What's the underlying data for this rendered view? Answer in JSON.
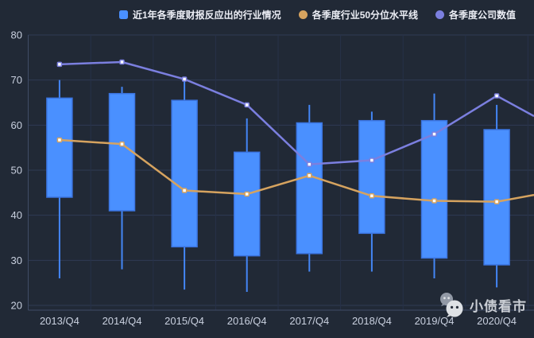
{
  "legend": {
    "items": [
      {
        "label": "近1年各季度财报反应出的行业情况",
        "marker": "square",
        "color": "#4a90ff"
      },
      {
        "label": "各季度行业50分位水平线",
        "marker": "circle",
        "color": "#d6a35f"
      },
      {
        "label": "各季度公司数值",
        "marker": "circle",
        "color": "#7b7fdf"
      }
    ]
  },
  "watermark": {
    "icon": "wechat-chat-bubbles-icon",
    "text": "小债看市"
  },
  "chart_data": {
    "type": "candlestick",
    "categories": [
      "2013/Q4",
      "2014/Q4",
      "2015/Q4",
      "2016/Q4",
      "2017/Q4",
      "2018/Q4",
      "2019/Q4",
      "2020/Q4"
    ],
    "ylim": [
      20,
      80
    ],
    "yticks": [
      20,
      30,
      40,
      50,
      60,
      70,
      80
    ],
    "grid": true,
    "legend_position": "top-center",
    "series": [
      {
        "name": "近1年各季度财报反应出的行业情况",
        "type": "candlestick",
        "color": "#4a90ff",
        "box_format": [
          "whisker_low",
          "box_bottom",
          "box_top",
          "whisker_high"
        ],
        "boxes": [
          [
            26,
            44,
            66,
            70
          ],
          [
            28,
            41,
            67,
            68.5
          ],
          [
            23.5,
            33,
            65.5,
            70
          ],
          [
            23,
            31,
            54,
            61.5
          ],
          [
            27.5,
            31.5,
            60.5,
            64.5
          ],
          [
            27.5,
            36,
            61,
            63
          ],
          [
            26,
            30.5,
            61,
            67
          ],
          [
            24,
            29,
            59,
            64.5
          ]
        ]
      },
      {
        "name": "各季度行业50分位水平线",
        "type": "line",
        "color": "#d6a35f",
        "values": [
          56.7,
          55.8,
          45.5,
          44.7,
          48.8,
          44.3,
          43.2,
          43
        ],
        "right_edge_value": 44.5
      },
      {
        "name": "各季度公司数值",
        "type": "line",
        "color": "#7b7fdf",
        "values": [
          73.5,
          74,
          70.2,
          64.5,
          51.3,
          52.2,
          58,
          66.5
        ],
        "right_edge_value": 62
      }
    ]
  },
  "colors": {
    "background": "#212936",
    "grid_line": "#2f3b54",
    "split_line": "#273148",
    "axis_line": "#3f4c66",
    "axis_label": "#c9d0df",
    "legend_text": "#eceef5",
    "candle_fill": "#4a90ff",
    "candle_border": "#3b74e0",
    "median_line": "#d6a35f",
    "company_line": "#7b7fdf",
    "point_fill": "#ffffff",
    "watermark_text": "#d4d7dd"
  }
}
